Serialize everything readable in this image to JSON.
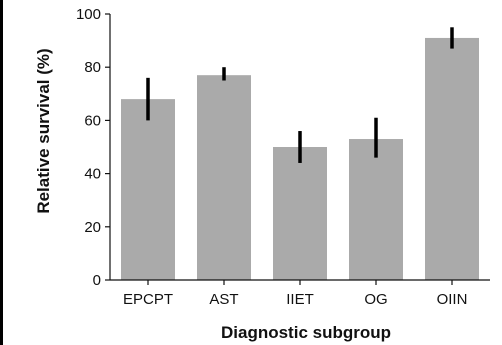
{
  "chart_data": {
    "type": "bar",
    "title": "",
    "xlabel": "Diagnostic subgroup",
    "ylabel": "Relative survival (%)",
    "categories": [
      "EPCPT",
      "AST",
      "IIET",
      "OG",
      "OIIN"
    ],
    "values": [
      68,
      77,
      50,
      53,
      91
    ],
    "error_low": [
      60,
      75,
      44,
      46,
      87
    ],
    "error_high": [
      76,
      80,
      56,
      61,
      95
    ],
    "ylim": [
      0,
      100
    ],
    "yticks": [
      0,
      20,
      40,
      60,
      80,
      100
    ],
    "grid": false,
    "legend": "none",
    "bar_color": "#aaaaaa",
    "error_color": "#000000",
    "axis_color": "#111111"
  }
}
